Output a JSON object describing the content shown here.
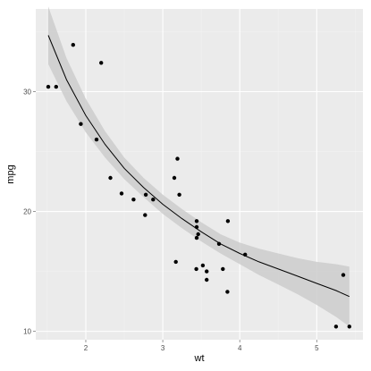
{
  "chart_data": {
    "type": "scatter",
    "title": "",
    "xlabel": "wt",
    "ylabel": "mpg",
    "xlim": [
      1.35,
      5.6
    ],
    "ylim": [
      9.3,
      36.9
    ],
    "x_ticks": [
      2,
      3,
      4,
      5
    ],
    "x_tick_labels": [
      "2",
      "3",
      "4",
      "5"
    ],
    "y_ticks": [
      10,
      20,
      30
    ],
    "y_tick_labels": [
      "10",
      "20",
      "30"
    ],
    "grid": true,
    "legend": "none",
    "colors": {
      "panel": "#ebebeb",
      "grid": "#ffffff",
      "points": "#000000",
      "smooth_line": "#000000",
      "ribbon": "#cccccc",
      "tick_text": "#4d4d4d"
    },
    "series": [
      {
        "type": "points",
        "x": [
          2.62,
          2.875,
          2.32,
          3.215,
          3.44,
          3.46,
          3.57,
          3.19,
          3.15,
          3.44,
          3.44,
          4.07,
          3.73,
          3.78,
          5.25,
          5.424,
          5.345,
          2.2,
          1.615,
          1.835,
          2.465,
          3.52,
          3.435,
          3.84,
          3.845,
          1.935,
          2.14,
          1.513,
          3.17,
          2.77,
          3.57,
          2.78
        ],
        "y": [
          21.0,
          21.0,
          22.8,
          21.4,
          18.7,
          18.1,
          14.3,
          24.4,
          22.8,
          19.2,
          17.8,
          16.4,
          17.3,
          15.2,
          10.4,
          10.4,
          14.7,
          32.4,
          30.4,
          33.9,
          21.5,
          15.5,
          15.2,
          13.3,
          19.2,
          27.3,
          26.0,
          30.4,
          15.8,
          19.7,
          15.0,
          21.4
        ]
      },
      {
        "type": "smooth",
        "x": [
          1.513,
          1.75,
          2.0,
          2.25,
          2.5,
          2.75,
          3.0,
          3.25,
          3.5,
          3.75,
          4.0,
          4.25,
          4.5,
          4.75,
          5.0,
          5.25,
          5.424
        ],
        "y": [
          34.7,
          31.0,
          28.0,
          25.6,
          23.6,
          22.0,
          20.6,
          19.4,
          18.3,
          17.3,
          16.5,
          15.8,
          15.2,
          14.6,
          14.0,
          13.4,
          12.9
        ],
        "ymin": [
          32.3,
          29.2,
          26.6,
          24.5,
          22.7,
          21.2,
          19.8,
          18.6,
          17.5,
          16.5,
          15.6,
          14.7,
          13.9,
          13.1,
          12.2,
          11.2,
          10.4
        ],
        "ymax": [
          37.1,
          32.8,
          29.4,
          26.7,
          24.5,
          22.8,
          21.4,
          20.2,
          19.1,
          18.1,
          17.4,
          16.9,
          16.5,
          16.1,
          15.8,
          15.6,
          15.4
        ]
      }
    ]
  }
}
